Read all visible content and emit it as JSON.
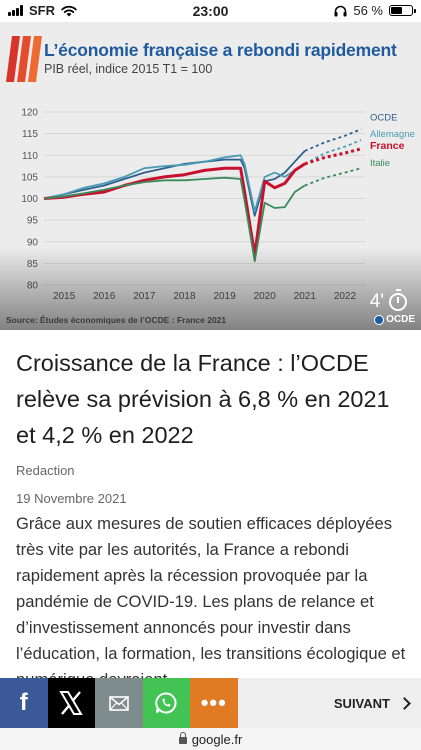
{
  "status_bar": {
    "carrier": "SFR",
    "time": "23:00",
    "battery": "56 %",
    "battery_level": 0.56
  },
  "hero": {
    "title": "L’économie française a rebondi rapidement",
    "subtitle": "PIB réel, indice 2015 T1 = 100",
    "source": "Source: Études économiques de l’OCDE : France 2021",
    "read_time": "4'",
    "logo_text": "OCDE"
  },
  "chart_data": {
    "type": "line",
    "title": "L’économie française a rebondi rapidement",
    "subtitle": "PIB réel, indice 2015 T1 = 100",
    "x_ticks": [
      "2015",
      "2016",
      "2017",
      "2018",
      "2019",
      "2020",
      "2021",
      "2022"
    ],
    "y_ticks": [
      80,
      85,
      90,
      95,
      100,
      105,
      110,
      115,
      120
    ],
    "ylim": [
      80,
      120
    ],
    "xlim": [
      2015.0,
      2023.0
    ],
    "grid": true,
    "legend": "right, inline labels",
    "series": [
      {
        "name": "OCDE",
        "color": "#2d5f8f",
        "x": [
          2015.0,
          2015.5,
          2016.0,
          2016.5,
          2017.0,
          2017.5,
          2018.0,
          2018.5,
          2019.0,
          2019.5,
          2019.9,
          2020.0,
          2020.25,
          2020.5,
          2020.75,
          2021.0,
          2021.25,
          2021.5
        ],
        "y": [
          100,
          101,
          102,
          103,
          104.5,
          106,
          107,
          108,
          108.5,
          109,
          109,
          107,
          96,
          104,
          104.5,
          106,
          108.5,
          111
        ],
        "forecast_x": [
          2021.5,
          2022.0,
          2022.5,
          2022.9
        ],
        "forecast_y": [
          111,
          113,
          114.5,
          116
        ]
      },
      {
        "name": "Allemagne",
        "color": "#4a9bb5",
        "x": [
          2015.0,
          2015.5,
          2016.0,
          2016.5,
          2017.0,
          2017.5,
          2018.0,
          2018.5,
          2019.0,
          2019.5,
          2019.9,
          2020.0,
          2020.25,
          2020.5,
          2020.75,
          2021.0,
          2021.25,
          2021.5
        ],
        "y": [
          100,
          101,
          102.5,
          103.5,
          105,
          107,
          107.5,
          107.8,
          108.5,
          109.5,
          110,
          108,
          97,
          105,
          106,
          105,
          106.5,
          108
        ],
        "forecast_x": [
          2021.5,
          2022.0,
          2022.5,
          2022.9
        ],
        "forecast_y": [
          108,
          110.5,
          112,
          113.5
        ]
      },
      {
        "name": "France",
        "color": "#c8102e",
        "x": [
          2015.0,
          2015.5,
          2016.0,
          2016.5,
          2017.0,
          2017.5,
          2018.0,
          2018.5,
          2019.0,
          2019.5,
          2019.9,
          2020.0,
          2020.25,
          2020.5,
          2020.75,
          2021.0,
          2021.25,
          2021.5
        ],
        "y": [
          100,
          100.3,
          101,
          101.5,
          103,
          104.2,
          105,
          105.5,
          106.5,
          107,
          107,
          101.5,
          87,
          104,
          102.5,
          103.5,
          106.5,
          108
        ],
        "forecast_x": [
          2021.5,
          2022.0,
          2022.5,
          2022.9
        ],
        "forecast_y": [
          108,
          109.5,
          110.5,
          111.5
        ]
      },
      {
        "name": "Italie",
        "color": "#3a8a5a",
        "x": [
          2015.0,
          2015.5,
          2016.0,
          2016.5,
          2017.0,
          2017.5,
          2018.0,
          2018.5,
          2019.0,
          2019.5,
          2019.9,
          2020.0,
          2020.25,
          2020.5,
          2020.75,
          2021.0,
          2021.25,
          2021.5
        ],
        "y": [
          100,
          100.5,
          101.2,
          102,
          103,
          103.8,
          104.2,
          104.2,
          104.5,
          104.8,
          104.5,
          99.5,
          85.5,
          99,
          97.8,
          98,
          101.5,
          103
        ],
        "forecast_x": [
          2021.5,
          2022.0,
          2022.5,
          2022.9
        ],
        "forecast_y": [
          103,
          104.8,
          106,
          107
        ]
      }
    ]
  },
  "article": {
    "headline": "Croissance de la France : l’OCDE relève sa prévision à 6,8 % en 2021 et 4,2 % en 2022",
    "author": "Redaction",
    "date": "19 Novembre 2021",
    "body": "Grâce aux mesures de soutien efficaces déployées très vite par les autorités, la France a rebondi rapidement après la récession provoquée par la pandémie de COVID-19. Les plans de relance et d’investissement annoncés pour investir dans l’éducation, la formation, les transitions écologique et numérique devraient"
  },
  "share_bar": {
    "facebook": "f",
    "more": "•••",
    "next_label": "SUIVANT"
  },
  "url_bar": {
    "domain": "google.fr"
  },
  "icons": [
    "wifi-icon",
    "headphones-icon",
    "battery-icon",
    "oecd-logo",
    "clock-icon",
    "facebook-icon",
    "x-icon",
    "mail-icon",
    "whatsapp-icon",
    "more-icon",
    "chevron-right-icon",
    "lock-icon"
  ]
}
